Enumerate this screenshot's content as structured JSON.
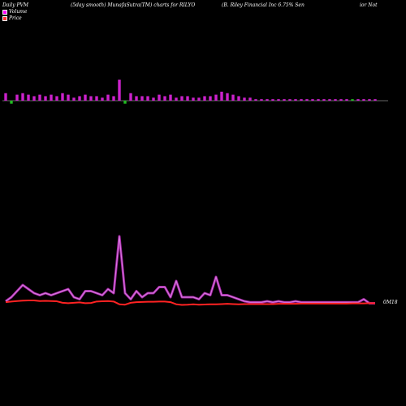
{
  "header": {
    "left": "Daily PVM",
    "center1": "(5day smooth) MunafaSutra(TM) charts for RILYO",
    "center2": "(B. Riley Financial Inc 6.75% Sen",
    "right": "ior Not"
  },
  "legend": {
    "volume": "Volume",
    "price": "Price",
    "volume_color": "#ff00ff",
    "price_color": "#ff3333"
  },
  "end_label": "0M18",
  "colors": {
    "background": "#000000",
    "up_bar": "#cc22cc",
    "down_bar": "#22bb22",
    "baseline": "#cccccc",
    "volume_line": "#d67adf",
    "volume_line_glow": "#a020a0",
    "price_line": "#ff2222"
  },
  "chart_data": {
    "type": "line",
    "title": "(5day smooth) MunafaSutra(TM) charts for RILYO",
    "bars": {
      "values": [
        5,
        -2,
        4,
        5,
        4,
        3,
        4,
        3,
        4,
        3,
        5,
        4,
        2,
        3,
        4,
        3,
        3,
        2,
        4,
        3,
        14,
        -2,
        5,
        3,
        3,
        3,
        2,
        4,
        3,
        4,
        2,
        3,
        3,
        2,
        2,
        3,
        3,
        4,
        6,
        5,
        4,
        3,
        2,
        2,
        1,
        1,
        1,
        1,
        1,
        1,
        1,
        1,
        1,
        1,
        1,
        1,
        1,
        1,
        1,
        1,
        1,
        1,
        1,
        1,
        1,
        1
      ],
      "colors": [
        "u",
        "d",
        "u",
        "u",
        "u",
        "u",
        "u",
        "u",
        "u",
        "u",
        "u",
        "u",
        "u",
        "u",
        "u",
        "u",
        "u",
        "u",
        "u",
        "u",
        "u",
        "d",
        "u",
        "u",
        "u",
        "u",
        "u",
        "u",
        "u",
        "u",
        "u",
        "u",
        "u",
        "u",
        "u",
        "u",
        "u",
        "u",
        "u",
        "u",
        "u",
        "u",
        "u",
        "u",
        "u",
        "u",
        "u",
        "u",
        "u",
        "u",
        "u",
        "u",
        "u",
        "u",
        "u",
        "u",
        "u",
        "u",
        "u",
        "u",
        "u",
        "d",
        "u",
        "u",
        "u",
        "u"
      ]
    },
    "series": [
      {
        "name": "Volume",
        "values": [
          2,
          4,
          7,
          10,
          8,
          6,
          5,
          6,
          5,
          6,
          7,
          8,
          4,
          3,
          7,
          7,
          6,
          5,
          8,
          6,
          34,
          6,
          3,
          7,
          4,
          6,
          6,
          9,
          9,
          4,
          12,
          4,
          4,
          4,
          3,
          6,
          5,
          14,
          5,
          5,
          4,
          3,
          2,
          1.5,
          1.5,
          1.5,
          2,
          1.5,
          2,
          1.5,
          1.5,
          2,
          1.5,
          1.5,
          1.5,
          1.5,
          1.5,
          1.5,
          1.5,
          1.5,
          1.5,
          1.5,
          1.5,
          3,
          1,
          1
        ]
      },
      {
        "name": "Price",
        "values": [
          1.5,
          1.8,
          2.0,
          2.2,
          2.3,
          2.3,
          2.0,
          2.1,
          2.0,
          1.9,
          1.2,
          1.0,
          1.2,
          1.4,
          1.0,
          1.1,
          1.8,
          1.9,
          2.0,
          1.8,
          0.5,
          0.3,
          1.2,
          1.5,
          1.6,
          1.7,
          1.7,
          1.8,
          1.8,
          1.5,
          0.5,
          0.2,
          0.3,
          0.5,
          0.3,
          0.4,
          0.5,
          0.5,
          0.6,
          0.7,
          0.6,
          0.5,
          0.6,
          0.6,
          0.6,
          0.6,
          0.6,
          0.6,
          0.7,
          0.7,
          0.7,
          0.7,
          0.8,
          0.8,
          0.8,
          0.8,
          0.8,
          0.8,
          0.8,
          0.8,
          0.8,
          0.9,
          0.9,
          0.9,
          1.0,
          1.0
        ]
      }
    ],
    "grid": false
  }
}
